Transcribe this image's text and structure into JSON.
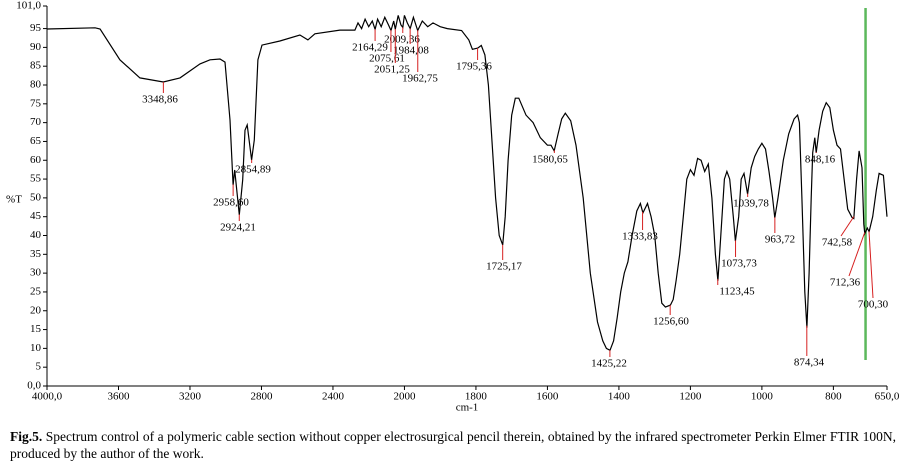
{
  "chart_data": {
    "type": "line",
    "x_label": "cm-1",
    "y_label": "%T",
    "caption_label": "Fig.5.",
    "caption": "Spectrum control of a polymeric cable section without copper electrosurgical pencil therein, obtained by the infrared spectrometer Perkin Elmer FTIR 100N, produced by the author of the work.",
    "xlim": [
      4000,
      650
    ],
    "ylim": [
      0,
      101
    ],
    "xticks": [
      {
        "value": 4000,
        "label": "4000,0"
      },
      3600,
      3200,
      2800,
      2400,
      2000,
      1800,
      1600,
      1400,
      1200,
      1000,
      800,
      {
        "value": 650,
        "label": "650,0"
      }
    ],
    "yticks": [
      {
        "value": 0,
        "label": "0,0"
      },
      5,
      10,
      15,
      20,
      25,
      30,
      35,
      40,
      45,
      50,
      55,
      60,
      65,
      70,
      75,
      80,
      85,
      90,
      95,
      {
        "value": 101,
        "label": "101,0"
      }
    ],
    "x": [
      4000,
      3731,
      3703,
      3592,
      3480,
      3349,
      3256,
      3144,
      3088,
      3032,
      3004,
      2976,
      2959,
      2950,
      2924,
      2905,
      2892,
      2880,
      2855,
      2840,
      2820,
      2797,
      2697,
      2585,
      2540,
      2501,
      2361,
      2277,
      2260,
      2240,
      2220,
      2200,
      2180,
      2164,
      2150,
      2130,
      2110,
      2090,
      2075,
      2060,
      2051,
      2035,
      2020,
      2009,
      2000,
      1992,
      1984,
      1975,
      1963,
      1950,
      1935,
      1920,
      1900,
      1880,
      1840,
      1820,
      1810,
      1795,
      1785,
      1775,
      1765,
      1755,
      1745,
      1735,
      1725,
      1718,
      1710,
      1700,
      1690,
      1680,
      1660,
      1640,
      1620,
      1600,
      1590,
      1581,
      1570,
      1560,
      1550,
      1535,
      1520,
      1500,
      1480,
      1460,
      1445,
      1435,
      1425,
      1415,
      1405,
      1395,
      1385,
      1375,
      1363,
      1350,
      1340,
      1333,
      1320,
      1310,
      1300,
      1290,
      1280,
      1270,
      1256,
      1248,
      1240,
      1230,
      1220,
      1210,
      1200,
      1190,
      1180,
      1170,
      1160,
      1150,
      1140,
      1130,
      1123,
      1115,
      1105,
      1098,
      1090,
      1080,
      1074,
      1065,
      1058,
      1050,
      1040,
      1030,
      1020,
      1010,
      1000,
      990,
      980,
      970,
      964,
      955,
      940,
      925,
      910,
      900,
      895,
      888,
      880,
      874,
      868,
      862,
      858,
      852,
      848,
      840,
      830,
      820,
      810,
      800,
      790,
      780,
      770,
      760,
      748,
      743,
      735,
      728,
      720,
      715,
      712,
      705,
      700,
      690,
      680,
      672,
      660,
      650
    ],
    "series": [
      {
        "color": "#000000",
        "values": [
          94.9,
          95.2,
          94.9,
          86.7,
          81.9,
          80.8,
          81.9,
          85.6,
          86.7,
          86.9,
          86.1,
          70.7,
          53.4,
          57.4,
          45.5,
          54.8,
          68.0,
          69.4,
          60.1,
          65.4,
          86.7,
          90.6,
          91.7,
          93.3,
          92.0,
          93.6,
          94.6,
          94.6,
          96.5,
          95,
          97.5,
          95.5,
          97,
          94.8,
          97.5,
          95.5,
          98,
          96,
          94.5,
          97,
          94.8,
          98.5,
          96,
          95.3,
          98.5,
          96.5,
          95,
          98,
          94.5,
          97,
          95.5,
          96.5,
          95.5,
          95.0,
          94.5,
          92.0,
          89.5,
          89.8,
          90.5,
          88,
          80,
          65,
          50,
          40,
          37.5,
          45,
          60,
          72,
          76.5,
          76.5,
          72,
          70,
          66,
          64,
          64,
          62.5,
          67,
          71,
          72.5,
          70.5,
          64,
          50,
          30,
          17,
          12,
          10,
          9.5,
          12,
          18,
          25,
          30,
          33,
          40,
          46.5,
          48.5,
          46,
          48.5,
          45,
          40,
          30,
          22,
          21,
          21.5,
          23,
          28,
          35,
          45,
          55,
          57.5,
          56,
          60.5,
          60,
          57,
          59,
          50,
          35,
          28,
          40,
          55,
          57,
          55,
          45,
          38.5,
          45,
          55,
          56.5,
          51,
          58,
          61,
          63,
          64.5,
          63,
          57,
          50,
          44.7,
          50,
          60,
          67,
          71,
          72,
          70,
          50,
          25,
          15.5,
          30,
          50,
          62,
          66,
          62,
          68,
          73,
          75.3,
          74,
          68,
          64,
          63,
          55,
          47,
          44.8,
          44.5,
          55,
          62.5,
          58,
          43,
          40.5,
          42,
          41,
          45,
          52,
          56.5,
          56,
          45
        ]
      }
    ],
    "peaks": [
      {
        "value": 3348.86,
        "label": "3348,86"
      },
      {
        "value": 2958.6,
        "label": "2958,60"
      },
      {
        "value": 2924.21,
        "label": "2924,21"
      },
      {
        "value": 2854.89,
        "label": "2854,89"
      },
      {
        "value": 2164.29,
        "label": "2164,29"
      },
      {
        "value": 2009.36,
        "label": "2009,36"
      },
      {
        "value": 2075.61,
        "label": "2075,61"
      },
      {
        "value": 1984.08,
        "label": "1984,08"
      },
      {
        "value": 2051.25,
        "label": "2051,25"
      },
      {
        "value": 1962.75,
        "label": "1962,75"
      },
      {
        "value": 1795.36,
        "label": "1795,36"
      },
      {
        "value": 1725.17,
        "label": "1725,17"
      },
      {
        "value": 1580.65,
        "label": "1580,65"
      },
      {
        "value": 1425.22,
        "label": "1425,22"
      },
      {
        "value": 1333.83,
        "label": "1333,83"
      },
      {
        "value": 1256.6,
        "label": "1256,60"
      },
      {
        "value": 1123.45,
        "label": "1123,45"
      },
      {
        "value": 1073.73,
        "label": "1073,73"
      },
      {
        "value": 1039.78,
        "label": "1039,78"
      },
      {
        "value": 963.72,
        "label": "963,72"
      },
      {
        "value": 874.34,
        "label": "874,34"
      },
      {
        "value": 848.16,
        "label": "848,16"
      },
      {
        "value": 742.58,
        "label": "742,58"
      },
      {
        "value": 712.36,
        "label": "712,36"
      },
      {
        "value": 700.3,
        "label": "700,30"
      }
    ],
    "peak_color": "#d62020",
    "cursor_x": 710,
    "cursor_color": "#5cb85c"
  }
}
